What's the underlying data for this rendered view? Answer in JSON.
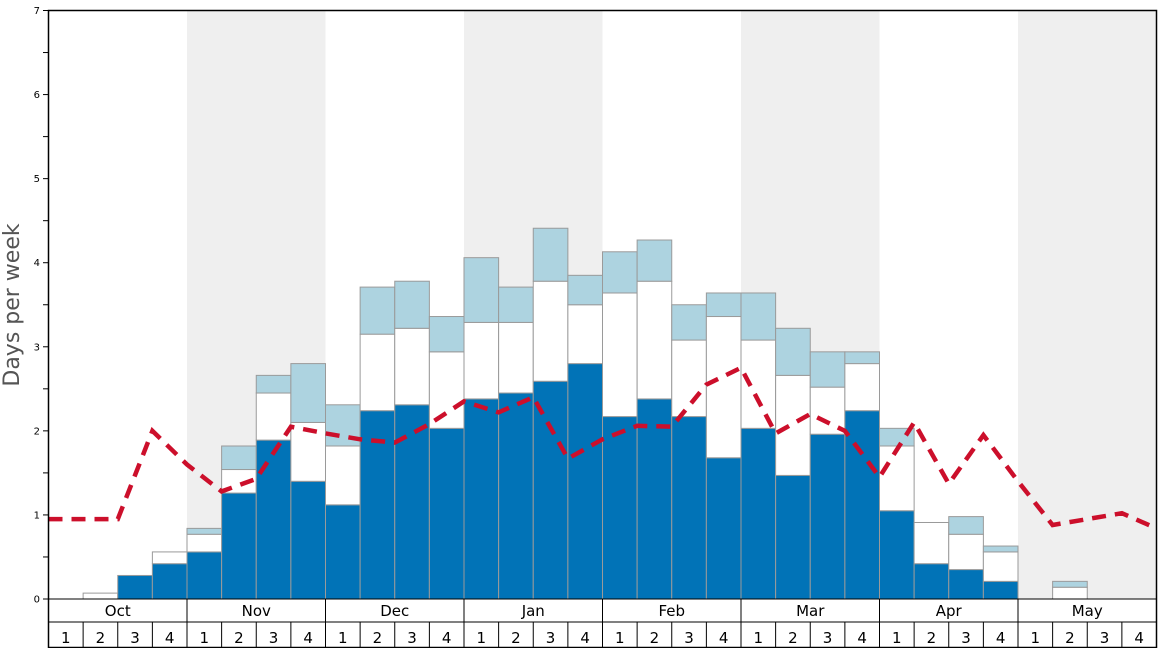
{
  "chart_data": {
    "type": "bar",
    "ylabel": "Days per week",
    "ylim": [
      0,
      7
    ],
    "y_ticks": [
      "0",
      "1",
      "2",
      "3",
      "4",
      "5",
      "6",
      "7"
    ],
    "months": [
      "Oct",
      "Nov",
      "Dec",
      "Jan",
      "Feb",
      "Mar",
      "Apr",
      "May"
    ],
    "week_labels": [
      "1",
      "2",
      "3",
      "4"
    ],
    "stacked": true,
    "colors": {
      "bottom": "#0173b7",
      "middle": "#ffffff",
      "top": "#add3e0",
      "line": "#cc0f2b",
      "shade": "#efefef"
    },
    "series": [
      {
        "values": [
          0,
          0,
          0.28,
          0.42,
          0.56,
          1.26,
          1.89,
          1.4,
          1.12,
          2.24,
          2.31,
          2.03,
          2.38,
          2.45,
          2.59,
          2.8,
          2.17,
          2.38,
          2.17,
          1.68,
          2.03,
          1.47,
          1.96,
          2.24,
          1.05,
          0.42,
          0.35,
          0.21,
          0,
          0,
          0,
          0
        ]
      },
      {
        "values": [
          0,
          0.07,
          0,
          0.14,
          0.21,
          0.28,
          0.56,
          0.7,
          0.7,
          0.91,
          0.91,
          0.91,
          0.91,
          0.84,
          1.19,
          0.7,
          1.47,
          1.4,
          0.91,
          1.68,
          1.05,
          1.19,
          0.56,
          0.56,
          0.77,
          0.49,
          0.42,
          0.35,
          0,
          0.14,
          0,
          0
        ]
      },
      {
        "values": [
          0,
          0,
          0,
          0,
          0.07,
          0.28,
          0.21,
          0.7,
          0.49,
          0.56,
          0.56,
          0.42,
          0.77,
          0.42,
          0.63,
          0.35,
          0.49,
          0.49,
          0.42,
          0.28,
          0.56,
          0.56,
          0.42,
          0.14,
          0.21,
          0,
          0.21,
          0.07,
          0,
          0.07,
          0,
          0
        ]
      }
    ],
    "line": {
      "style": "dashed",
      "values": [
        0.95,
        0.95,
        0.95,
        2.0,
        1.6,
        1.28,
        1.43,
        2.05,
        1.97,
        1.9,
        1.86,
        2.08,
        2.35,
        2.22,
        2.4,
        1.67,
        1.9,
        2.06,
        2.05,
        2.55,
        2.75,
        1.97,
        2.2,
        2.0,
        1.45,
        2.1,
        1.37,
        1.95,
        1.4,
        0.88,
        0.95,
        1.02,
        0.84
      ]
    }
  }
}
